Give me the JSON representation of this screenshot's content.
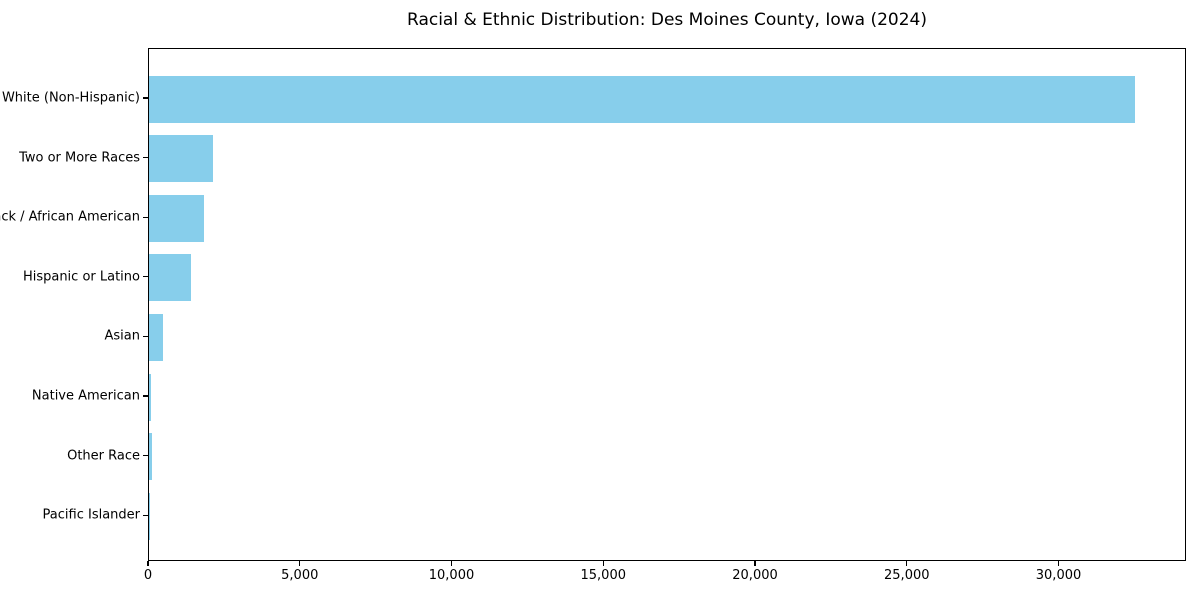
{
  "title": "Racial & Ethnic Distribution: Des Moines County, Iowa (2024)",
  "colors": {
    "bar": "#87CEEB",
    "axis": "#000000",
    "background": "#ffffff",
    "text": "#000000"
  },
  "chart_data": {
    "type": "bar",
    "orientation": "horizontal",
    "title": "Racial & Ethnic Distribution: Des Moines County, Iowa (2024)",
    "categories": [
      "White (Non-Hispanic)",
      "Two or More Races",
      "Black / African American",
      "Hispanic or Latino",
      "Asian",
      "Native American",
      "Other Race",
      "Pacific Islander"
    ],
    "values": [
      32500,
      2100,
      1800,
      1400,
      450,
      80,
      100,
      10
    ],
    "xlabel": "",
    "ylabel": "",
    "xlim": [
      0,
      34200
    ],
    "x_ticks": [
      0,
      5000,
      10000,
      15000,
      20000,
      25000,
      30000
    ],
    "x_tick_labels": [
      "0",
      "5,000",
      "10,000",
      "15,000",
      "20,000",
      "25,000",
      "30,000"
    ],
    "grid": false,
    "legend": false,
    "bar_color": "#87CEEB"
  }
}
